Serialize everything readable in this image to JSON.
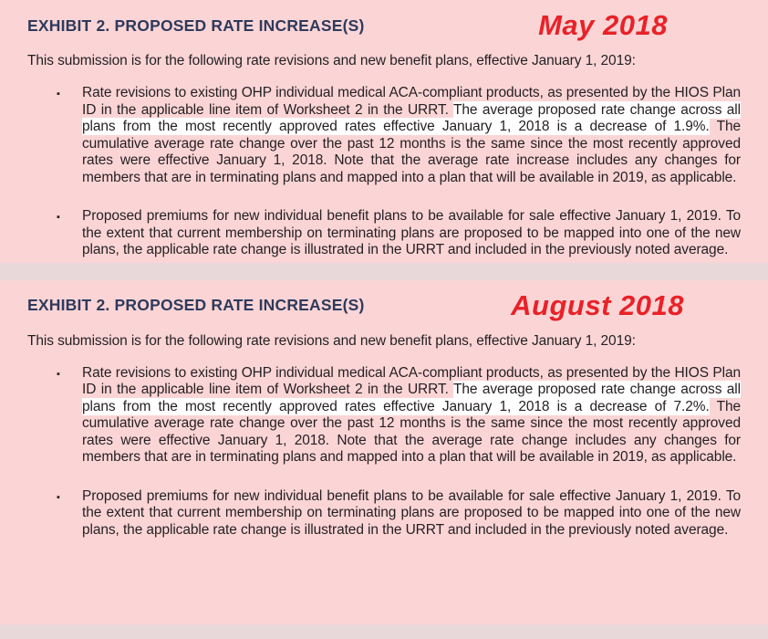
{
  "colors": {
    "page-bg": "#fbd5d6",
    "divider": "#e9d8da",
    "heading": "#2e3a5c",
    "accent-red": "#e82228",
    "body-text": "#241f21",
    "highlight-bg": "#ffffff"
  },
  "bullet_char": "▪",
  "sections": [
    {
      "heading": "EXHIBIT 2. PROPOSED RATE INCREASE(S)",
      "date_label": "May 2018",
      "intro": "This submission is for the following rate revisions and new benefit plans, effective January 1, 2019:",
      "bullet1": {
        "pre": "Rate revisions to existing OHP individual medical ACA-compliant products, as presented by the HIOS Plan ID in the applicable line item of Worksheet 2 in the URRT. ",
        "highlight": "The average proposed rate change across all plans from the most recently approved rates effective January 1, 2018 is a decrease of 1.9%.",
        "post": " The cumulative average rate change over the past 12 months is the same since the most recently approved rates were effective January 1, 2018. Note that the average rate increase includes any changes for members that are in terminating plans and mapped into a plan that will be available in 2019, as applicable."
      },
      "bullet2": "Proposed premiums for new individual benefit plans to be available for sale effective January 1, 2019. To the extent that current membership on terminating plans are proposed to be mapped into one of the new plans, the applicable rate change is illustrated in the URRT and included in the previously noted average."
    },
    {
      "heading": "EXHIBIT 2. PROPOSED RATE INCREASE(S)",
      "date_label": "August 2018",
      "intro": "This submission is for the following rate revisions and new benefit plans, effective January 1, 2019:",
      "bullet1": {
        "pre": "Rate revisions to existing OHP individual medical ACA-compliant products, as presented by the HIOS Plan ID in the applicable line item of Worksheet 2 in the URRT. ",
        "highlight": "The average proposed rate change across all plans from the most recently approved rates effective January 1, 2018 is a decrease of 7.2%.",
        "post": " The cumulative average rate change over the past 12 months is the same since the most recently approved rates were effective January 1, 2018. Note that the average rate change includes any changes for members that are in terminating plans and mapped into a plan that will be available in 2019, as applicable."
      },
      "bullet2": "Proposed premiums for new individual benefit plans to be available for sale effective January 1, 2019. To the extent that current membership on terminating plans are proposed to be mapped into one of the new plans, the applicable rate change is illustrated in the URRT and included in the previously noted average."
    }
  ]
}
